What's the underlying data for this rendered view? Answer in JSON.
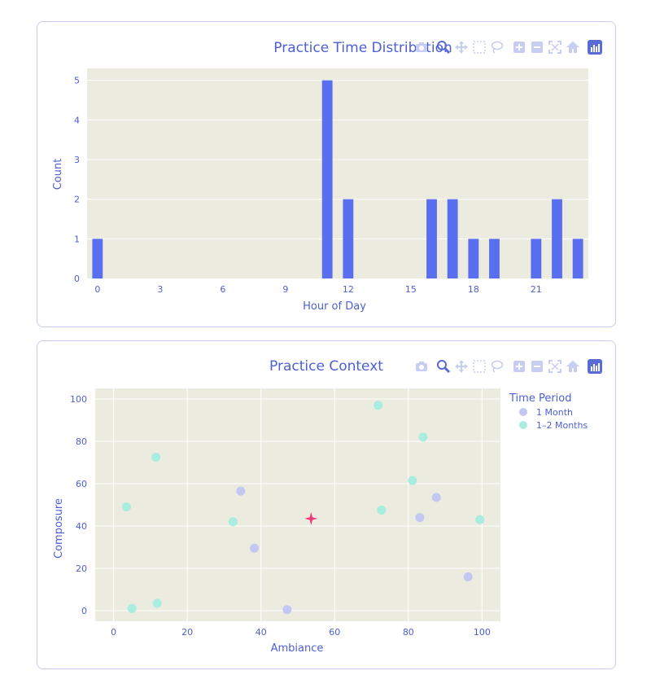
{
  "colors": {
    "plot_bg": "#ebebe0",
    "grid": "#ffffff",
    "bar": "#5a6ff0",
    "text": "#4d5fd4",
    "month1": "#c3c8f3",
    "months12": "#a9ece0",
    "star": "#f2387a",
    "modebar_inactive": "#c8cdf2",
    "modebar_active": "#5a6ad6"
  },
  "modebar": {
    "icons": [
      "camera-icon",
      "zoom-icon",
      "pan-icon",
      "box-select-icon",
      "lasso-icon",
      "zoom-in-icon",
      "zoom-out-icon",
      "autoscale-icon",
      "reset-axes-icon",
      "plotly-logo-icon"
    ]
  },
  "chart_data": [
    {
      "type": "bar",
      "title": "Practice Time Distribution",
      "xlabel": "Hour of Day",
      "ylabel": "Count",
      "x": [
        0,
        11,
        12,
        16,
        17,
        18,
        19,
        21,
        22,
        23
      ],
      "values": [
        1,
        5,
        2,
        2,
        2,
        1,
        1,
        1,
        2,
        1
      ],
      "xlim": [
        -0.5,
        23.5
      ],
      "ylim": [
        0,
        5.3
      ],
      "xticks": [
        0,
        3,
        6,
        9,
        12,
        15,
        18,
        21
      ],
      "yticks": [
        0,
        1,
        2,
        3,
        4,
        5
      ],
      "grid": true
    },
    {
      "type": "scatter",
      "title": "Practice Context",
      "xlabel": "Ambiance",
      "ylabel": "Composure",
      "xlim": [
        -5,
        105
      ],
      "ylim": [
        -5,
        105
      ],
      "xticks": [
        0,
        20,
        40,
        60,
        80,
        100
      ],
      "yticks": [
        0,
        20,
        40,
        60,
        80,
        100
      ],
      "grid": true,
      "legend": {
        "title": "Time Period",
        "position": "top-right"
      },
      "series": [
        {
          "name": "1 Month",
          "x": [
            34.5,
            38.2,
            47.1,
            83.1,
            87.6,
            96.2
          ],
          "y": [
            56.5,
            29.5,
            0.5,
            44.0,
            53.5,
            16.0
          ]
        },
        {
          "name": "1–2 Months",
          "x": [
            3.5,
            5.0,
            11.5,
            11.8,
            32.4,
            71.8,
            72.7,
            81.1,
            84.0,
            99.4
          ],
          "y": [
            49.0,
            1.0,
            72.5,
            3.5,
            42.0,
            97.0,
            47.5,
            61.5,
            82.0,
            43.0
          ]
        }
      ],
      "marker_star": {
        "x": 53.6,
        "y": 43.5
      }
    }
  ]
}
